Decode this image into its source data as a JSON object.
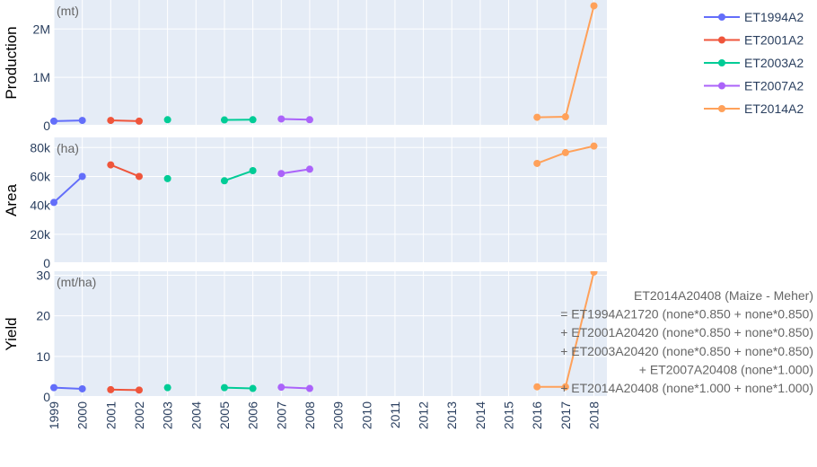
{
  "chart_data": {
    "type": "line",
    "x_categories": [
      "1999",
      "2000",
      "2001",
      "2002",
      "2003",
      "2004",
      "2005",
      "2006",
      "2007",
      "2008",
      "2009",
      "2010",
      "2011",
      "2012",
      "2013",
      "2014",
      "2015",
      "2016",
      "2017",
      "2018"
    ],
    "legend_position": "top-right",
    "panels": [
      {
        "key": "production",
        "ylabel": "Production",
        "unit": "(mt)",
        "ylim": [
          0,
          2600000
        ],
        "yticks": [
          {
            "v": 0,
            "label": "0"
          },
          {
            "v": 1000000,
            "label": "1M"
          },
          {
            "v": 2000000,
            "label": "2M"
          }
        ],
        "grid": true
      },
      {
        "key": "area",
        "ylabel": "Area",
        "unit": "(ha)",
        "ylim": [
          0,
          87000
        ],
        "yticks": [
          {
            "v": 0,
            "label": "0"
          },
          {
            "v": 20000,
            "label": "20k"
          },
          {
            "v": 40000,
            "label": "40k"
          },
          {
            "v": 60000,
            "label": "60k"
          },
          {
            "v": 80000,
            "label": "80k"
          }
        ],
        "grid": true
      },
      {
        "key": "yield",
        "ylabel": "Yield",
        "unit": "(mt/ha)",
        "ylim": [
          0,
          31
        ],
        "yticks": [
          {
            "v": 0,
            "label": "0"
          },
          {
            "v": 10,
            "label": "10"
          },
          {
            "v": 20,
            "label": "20"
          },
          {
            "v": 30,
            "label": "30"
          }
        ],
        "grid": true
      }
    ],
    "series": [
      {
        "name": "ET1994A2",
        "color": "#636efa",
        "points": [
          {
            "x": "1999",
            "production": 95000,
            "area": 42000,
            "yield": 2.3
          },
          {
            "x": "2000",
            "production": 110000,
            "area": 60000,
            "yield": 2.0
          }
        ]
      },
      {
        "name": "ET2001A2",
        "color": "#ef553b",
        "points": [
          {
            "x": "2001",
            "production": 110000,
            "area": 68000,
            "yield": 1.8
          },
          {
            "x": "2002",
            "production": 95000,
            "area": 60000,
            "yield": 1.7
          }
        ]
      },
      {
        "name": "ET2003A2",
        "color": "#00cc96",
        "points": [
          {
            "x": "2003",
            "production": 125000,
            "area": 58500,
            "yield": 2.3
          },
          {
            "x": "2005",
            "production": 120000,
            "area": 57000,
            "yield": 2.3
          },
          {
            "x": "2006",
            "production": 125000,
            "area": 64000,
            "yield": 2.1
          }
        ]
      },
      {
        "name": "ET2007A2",
        "color": "#ab63fa",
        "points": [
          {
            "x": "2007",
            "production": 140000,
            "area": 62000,
            "yield": 2.4
          },
          {
            "x": "2008",
            "production": 125000,
            "area": 65000,
            "yield": 2.1
          }
        ]
      },
      {
        "name": "ET2014A2",
        "color": "#ffa15a",
        "points": [
          {
            "x": "2016",
            "production": 175000,
            "area": 69000,
            "yield": 2.5
          },
          {
            "x": "2017",
            "production": 185000,
            "area": 76500,
            "yield": 2.5
          },
          {
            "x": "2018",
            "production": 2480000,
            "area": 81000,
            "yield": 30.8
          }
        ]
      }
    ],
    "segments": [
      {
        "series": 0,
        "from": 0,
        "to": 1
      },
      {
        "series": 1,
        "from": 0,
        "to": 1
      },
      {
        "series": 2,
        "from": 1,
        "to": 2
      },
      {
        "series": 3,
        "from": 0,
        "to": 1
      },
      {
        "series": 4,
        "from": 0,
        "to": 1
      },
      {
        "series": 4,
        "from": 1,
        "to": 2
      }
    ],
    "annotation": [
      "ET2014A20408 (Maize - Meher)",
      "= ET1994A21720 (none*0.850 + none*0.850)",
      "+ ET2001A20420 (none*0.850 + none*0.850)",
      "+ ET2003A20420 (none*0.850 + none*0.850)",
      "+ ET2007A20408 (none*1.000)",
      "+ ET2014A20408 (none*1.000 + none*1.000)"
    ]
  }
}
